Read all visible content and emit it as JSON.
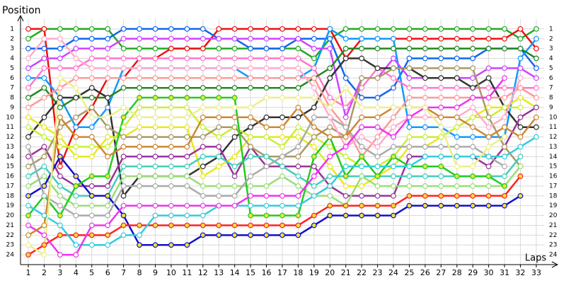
{
  "chart_data": {
    "type": "line",
    "title": "Position",
    "x_label": "Laps",
    "x": [
      1,
      2,
      3,
      4,
      5,
      6,
      7,
      8,
      9,
      10,
      11,
      12,
      13,
      14,
      15,
      16,
      17,
      18,
      19,
      20,
      21,
      22,
      23,
      24,
      25,
      26,
      27,
      28,
      29,
      30,
      31,
      32,
      33
    ],
    "xlim": [
      0.5,
      33.5
    ],
    "xticks": [
      1,
      2,
      3,
      4,
      5,
      6,
      7,
      8,
      9,
      10,
      11,
      12,
      13,
      14,
      15,
      16,
      17,
      18,
      19,
      20,
      21,
      22,
      23,
      24,
      25,
      26,
      27,
      28,
      29,
      30,
      31,
      32,
      33
    ],
    "ylim": [
      25,
      0
    ],
    "yticks": [
      1,
      2,
      3,
      4,
      5,
      6,
      7,
      8,
      9,
      10,
      11,
      12,
      13,
      14,
      15,
      16,
      17,
      18,
      19,
      20,
      21,
      22,
      23,
      24
    ],
    "grid": true,
    "series": [
      {
        "color": "#22aa22",
        "marker_fill": "#ffffff",
        "values": [
          2,
          1,
          1,
          1,
          1,
          1,
          3,
          3,
          3,
          3,
          3,
          3,
          3,
          3,
          3,
          3,
          3,
          3,
          4,
          2,
          1,
          1,
          1,
          1,
          1,
          1,
          1,
          1,
          1,
          1,
          1,
          2,
          1
        ]
      },
      {
        "color": "#ee1111",
        "marker_fill": "#ffffff",
        "values": [
          1,
          1,
          15,
          11,
          9,
          6,
          6,
          4,
          4,
          3,
          3,
          3,
          1,
          1,
          1,
          1,
          1,
          1,
          1,
          1,
          4,
          2,
          2,
          2,
          2,
          2,
          2,
          2,
          2,
          2,
          2,
          1,
          3
        ]
      },
      {
        "color": "#1166ee",
        "marker_fill": "#ffffff",
        "values": [
          3,
          3,
          3,
          2,
          2,
          2,
          1,
          1,
          1,
          1,
          1,
          1,
          2,
          2,
          3,
          3,
          3,
          2,
          2,
          2,
          6,
          8,
          8,
          7,
          4,
          4,
          4,
          4,
          4,
          3,
          3,
          3,
          5
        ]
      },
      {
        "color": "#1199ff",
        "marker_fill": "#ffffff",
        "values": [
          6,
          6,
          8,
          11,
          11,
          9,
          5,
          5,
          5,
          5,
          5,
          5,
          5,
          5,
          6,
          6,
          6,
          6,
          5,
          1,
          2,
          2,
          2,
          2,
          11,
          11,
          11,
          12,
          12,
          12,
          12,
          4,
          2
        ]
      },
      {
        "color": "#cc44ff",
        "marker_fill": "#ffffff",
        "values": [
          5,
          4,
          4,
          3,
          3,
          3,
          2,
          2,
          2,
          2,
          2,
          2,
          2,
          2,
          2,
          2,
          2,
          2,
          3,
          3,
          10,
          6,
          6,
          4,
          6,
          6,
          6,
          6,
          6,
          5,
          5,
          5,
          6
        ]
      },
      {
        "color": "#ff77cc",
        "marker_fill": "#ffffff",
        "values": [
          7,
          5,
          5,
          5,
          4,
          4,
          4,
          4,
          4,
          4,
          4,
          4,
          4,
          4,
          4,
          4,
          4,
          4,
          5,
          8,
          9,
          7,
          5,
          6,
          7,
          7,
          7,
          7,
          7,
          7,
          7,
          7,
          7
        ]
      },
      {
        "color": "#228822",
        "marker_fill": "#ffffff",
        "values": [
          8,
          7,
          9,
          8,
          8,
          8,
          7,
          7,
          7,
          7,
          7,
          7,
          7,
          7,
          7,
          7,
          7,
          7,
          6,
          5,
          3,
          3,
          3,
          3,
          3,
          3,
          3,
          3,
          3,
          3,
          3,
          3,
          4
        ]
      },
      {
        "color": "#333333",
        "marker_fill": "#ffffff",
        "values": [
          12,
          10,
          8,
          8,
          7,
          8,
          18,
          16,
          16,
          16,
          16,
          15,
          14,
          12,
          11,
          10,
          10,
          10,
          9,
          6,
          4,
          4,
          5,
          5,
          5,
          6,
          6,
          6,
          7,
          6,
          9,
          11,
          11
        ]
      },
      {
        "color": "#ff9999",
        "marker_fill": "#ffffff",
        "values": [
          9,
          8,
          7,
          6,
          6,
          6,
          6,
          6,
          6,
          6,
          6,
          6,
          6,
          6,
          6,
          6,
          6,
          6,
          6,
          9,
          11,
          14,
          12,
          10,
          8,
          8,
          8,
          8,
          8,
          8,
          8,
          7,
          8
        ]
      },
      {
        "color": "#e8e820",
        "marker_fill": "#ffffff",
        "values": [
          10,
          11,
          12,
          14,
          14,
          12,
          12,
          11,
          11,
          11,
          11,
          16,
          15,
          14,
          12,
          12,
          12,
          12,
          13,
          15,
          17,
          17,
          16,
          15,
          13,
          13,
          12,
          11,
          10,
          9,
          9,
          8,
          9
        ]
      },
      {
        "color": "#ccee33",
        "marker_fill": "#ffffff",
        "values": [
          11,
          12,
          13,
          13,
          13,
          13,
          11,
          9,
          9,
          9,
          9,
          11,
          12,
          11,
          12,
          12,
          13,
          11,
          12,
          13,
          14,
          15,
          15,
          14,
          12,
          12,
          12,
          11,
          10,
          10,
          9,
          9,
          null
        ]
      },
      {
        "color": "#993399",
        "marker_fill": "#ffffff",
        "values": [
          14,
          13,
          16,
          17,
          17,
          17,
          14,
          14,
          14,
          14,
          14,
          13,
          13,
          16,
          13,
          15,
          15,
          15,
          15,
          17,
          18,
          18,
          18,
          18,
          14,
          14,
          14,
          14,
          14,
          15,
          13,
          10,
          9
        ]
      },
      {
        "color": "#aa9966",
        "marker_fill": "#ffffff",
        "values": [
          15,
          14,
          11,
          10,
          9,
          11,
          12,
          12,
          12,
          12,
          12,
          12,
          11,
          11,
          13,
          14,
          14,
          14,
          12,
          11,
          12,
          6,
          6,
          5,
          5,
          5,
          5,
          5,
          5,
          10,
          13,
          15,
          null
        ]
      },
      {
        "color": "#44ccbb",
        "marker_fill": "#ffffff",
        "values": [
          16,
          15,
          17,
          18,
          18,
          18,
          15,
          15,
          15,
          15,
          15,
          14,
          14,
          15,
          14,
          14,
          15,
          16,
          17,
          16,
          16,
          16,
          16,
          16,
          16,
          16,
          16,
          16,
          16,
          16,
          16,
          14,
          null
        ]
      },
      {
        "color": "#99dd77",
        "marker_fill": "#ffffff",
        "values": [
          17,
          16,
          18,
          19,
          19,
          19,
          16,
          16,
          16,
          16,
          16,
          17,
          17,
          17,
          17,
          17,
          16,
          17,
          18,
          18,
          19,
          16,
          17,
          17,
          17,
          17,
          17,
          17,
          17,
          17,
          17,
          15,
          null
        ]
      },
      {
        "color": "#1111cc",
        "marker_fill": "#f0e040",
        "values": [
          18,
          17,
          14,
          16,
          18,
          18,
          20,
          23,
          23,
          23,
          23,
          22,
          22,
          22,
          22,
          22,
          22,
          22,
          21,
          20,
          20,
          20,
          20,
          20,
          19,
          19,
          19,
          19,
          19,
          19,
          19,
          18,
          null
        ]
      },
      {
        "color": "#22cc22",
        "marker_fill": "#f0e040",
        "values": [
          20,
          18,
          20,
          17,
          16,
          16,
          10,
          8,
          8,
          8,
          8,
          8,
          8,
          8,
          20,
          20,
          20,
          20,
          14,
          12,
          16,
          14,
          16,
          14,
          15,
          15,
          15,
          16,
          16,
          16,
          17,
          null,
          null
        ]
      },
      {
        "color": "#ff2222",
        "marker_fill": "#f0e040",
        "values": [
          24,
          23,
          22,
          22,
          22,
          22,
          21,
          21,
          21,
          21,
          21,
          21,
          21,
          21,
          21,
          21,
          21,
          21,
          20,
          19,
          19,
          19,
          19,
          19,
          18,
          18,
          18,
          18,
          18,
          18,
          18,
          16,
          null
        ]
      },
      {
        "color": "#aaaaaa",
        "marker_fill": "#ffffff",
        "values": [
          13,
          18,
          19,
          20,
          20,
          20,
          17,
          17,
          17,
          17,
          17,
          18,
          18,
          18,
          16,
          15,
          14,
          13,
          10,
          10,
          11,
          13,
          14,
          13,
          13,
          13,
          13,
          13,
          13,
          14,
          15,
          null,
          null
        ]
      },
      {
        "color": "#33ccdd",
        "marker_fill": "#ffffff",
        "values": [
          19,
          20,
          21,
          23,
          23,
          23,
          22,
          22,
          20,
          20,
          20,
          20,
          19,
          19,
          19,
          19,
          19,
          19,
          18,
          17,
          15,
          15,
          15,
          15,
          15,
          14,
          14,
          14,
          14,
          14,
          14,
          13,
          12
        ]
      },
      {
        "color": "#ffaacc",
        "marker_fill": "#ffffff",
        "values": [
          4,
          2,
          2,
          4,
          5,
          5,
          5,
          5,
          5,
          5,
          5,
          5,
          5,
          5,
          5,
          5,
          5,
          5,
          7,
          10,
          13,
          12,
          13,
          11,
          10,
          10,
          10,
          10,
          9,
          11,
          10,
          6,
          null
        ]
      },
      {
        "color": "#ee33ee",
        "marker_fill": "#ffffff",
        "values": [
          21,
          22,
          24,
          24,
          21,
          21,
          19,
          19,
          19,
          19,
          19,
          19,
          19,
          19,
          18,
          18,
          18,
          18,
          16,
          14,
          13,
          11,
          11,
          12,
          10,
          9,
          9,
          9,
          8,
          8,
          6,
          null,
          null
        ]
      },
      {
        "color": "#cc8833",
        "marker_fill": "#ffffff",
        "values": [
          22,
          21,
          10,
          12,
          12,
          14,
          13,
          13,
          13,
          13,
          13,
          10,
          10,
          10,
          10,
          11,
          11,
          9,
          11,
          12,
          12,
          10,
          10,
          9,
          9,
          9,
          10,
          10,
          11,
          12,
          11,
          12,
          10
        ]
      },
      {
        "color": "#eeee88",
        "marker_fill": "#ffffff",
        "values": [
          23,
          24,
          6,
          7,
          10,
          10,
          9,
          10,
          10,
          10,
          10,
          9,
          9,
          9,
          9,
          8,
          8,
          8,
          8,
          9,
          7,
          9,
          9,
          9,
          9,
          9,
          11,
          15,
          15,
          13,
          12,
          null,
          null
        ]
      }
    ]
  }
}
